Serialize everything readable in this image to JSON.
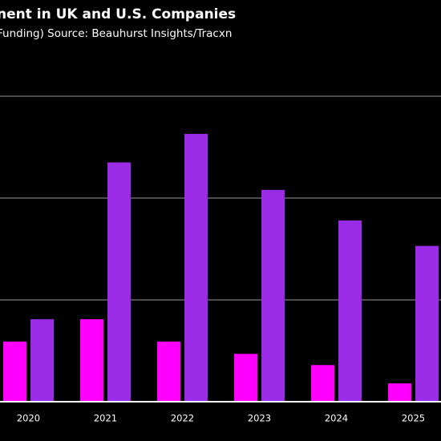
{
  "chart_data": {
    "type": "bar",
    "title": "nent in UK and U.S. Companies",
    "subtitle": "Funding) Source: Beauhurst Insights/Tracxn",
    "categories": [
      "2020",
      "2021",
      "2022",
      "2023",
      "2024",
      "2025"
    ],
    "series": [
      {
        "color": "#ff00ff",
        "values": [
          0.59,
          0.81,
          0.59,
          0.47,
          0.36,
          0.18
        ]
      },
      {
        "color": "#9a2be6",
        "values": [
          0.81,
          2.35,
          2.63,
          2.08,
          1.78,
          1.53
        ]
      }
    ],
    "ylim": [
      0,
      3.5
    ],
    "yticks": [
      1,
      2,
      3
    ],
    "grid": true
  }
}
